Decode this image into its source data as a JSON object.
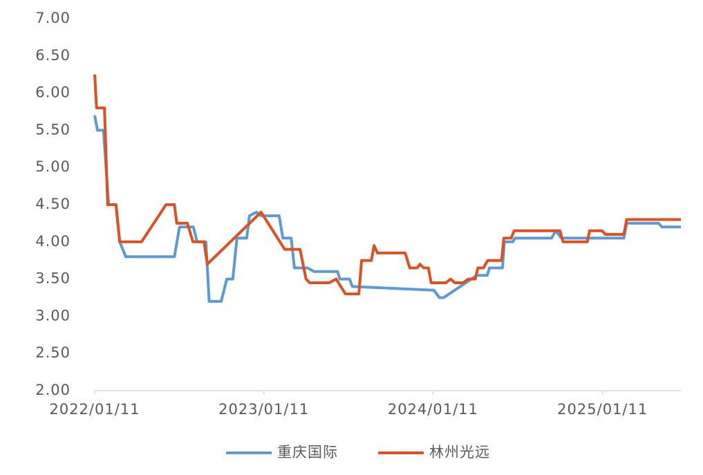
{
  "chart_data": {
    "type": "line",
    "xlim": [
      "2022/01/11",
      "2025/06/29"
    ],
    "xticks": [
      "2022/01/11",
      "2023/01/11",
      "2024/01/11",
      "2025/01/11"
    ],
    "ylim": [
      2,
      7
    ],
    "yticks": [
      {
        "value": 2,
        "label": "2.00"
      },
      {
        "value": 2.5,
        "label": "2.50"
      },
      {
        "value": 3,
        "label": "3.00"
      },
      {
        "value": 3.5,
        "label": "3.50"
      },
      {
        "value": 4,
        "label": "4.00"
      },
      {
        "value": 4.5,
        "label": "4.50"
      },
      {
        "value": 5,
        "label": "5.00"
      },
      {
        "value": 5.5,
        "label": "5.50"
      },
      {
        "value": 6,
        "label": "6.00"
      },
      {
        "value": 6.5,
        "label": "6.50"
      },
      {
        "value": 7,
        "label": "7.00"
      }
    ],
    "legend": "bottom",
    "series": [
      {
        "name": "重庆国际",
        "color": "#5b9bd5",
        "x": [
          "2022/01/11",
          "2022/01/17",
          "2022/01/30",
          "2022/02/10",
          "2022/02/26",
          "2022/03/06",
          "2022/03/19",
          "2022/07/02",
          "2022/07/13",
          "2022/08/12",
          "2022/08/20",
          "2022/09/08",
          "2022/09/15",
          "2022/10/11",
          "2022/10/23",
          "2022/11/05",
          "2022/11/14",
          "2022/12/05",
          "2022/12/11",
          "2022/12/26",
          "2023/01/05",
          "2023/02/13",
          "2023/02/21",
          "2023/03/11",
          "2023/03/18",
          "2023/04/15",
          "2023/04/30",
          "2023/06/19",
          "2023/06/24",
          "2023/07/15",
          "2023/07/21",
          "2024/01/13",
          "2024/01/25",
          "2024/02/03",
          "2024/04/15",
          "2024/05/07",
          "2024/05/12",
          "2024/06/09",
          "2024/06/13",
          "2024/07/01",
          "2024/07/06",
          "2024/09/23",
          "2024/10/02",
          "2024/10/14",
          "2025/02/26",
          "2025/03/04",
          "2025/05/12",
          "2025/05/19",
          "2025/06/29"
        ],
        "values": [
          5.7,
          5.5,
          5.5,
          4.5,
          4.5,
          4.0,
          3.8,
          3.8,
          4.2,
          4.2,
          4.0,
          4.0,
          3.2,
          3.2,
          3.5,
          3.5,
          4.05,
          4.05,
          4.35,
          4.4,
          4.35,
          4.35,
          4.05,
          4.05,
          3.65,
          3.65,
          3.6,
          3.6,
          3.5,
          3.5,
          3.4,
          3.35,
          3.25,
          3.25,
          3.55,
          3.55,
          3.65,
          3.65,
          4.0,
          4.0,
          4.05,
          4.05,
          4.15,
          4.05,
          4.05,
          4.25,
          4.25,
          4.2,
          4.2
        ]
      },
      {
        "name": "林州光远",
        "color": "#df4f1f",
        "x": [
          "2022/01/11",
          "2022/01/15",
          "2022/02/01",
          "2022/02/08",
          "2022/02/26",
          "2022/03/06",
          "2022/04/22",
          "2022/06/14",
          "2022/07/02",
          "2022/07/07",
          "2022/07/30",
          "2022/08/11",
          "2022/09/04",
          "2022/09/11",
          "2023/01/05",
          "2023/02/25",
          "2023/03/30",
          "2023/04/12",
          "2023/04/20",
          "2023/06/01",
          "2023/06/16",
          "2023/07/06",
          "2023/08/04",
          "2023/08/10",
          "2023/08/31",
          "2023/09/06",
          "2023/09/13",
          "2023/11/12",
          "2023/11/22",
          "2023/12/08",
          "2023/12/14",
          "2023/12/22",
          "2024/01/01",
          "2024/01/07",
          "2024/02/08",
          "2024/02/18",
          "2024/02/27",
          "2024/03/16",
          "2024/03/27",
          "2024/04/11",
          "2024/04/17",
          "2024/04/29",
          "2024/05/08",
          "2024/06/07",
          "2024/06/12",
          "2024/06/28",
          "2024/07/04",
          "2024/10/11",
          "2024/10/18",
          "2024/12/09",
          "2024/12/14",
          "2025/01/10",
          "2025/01/17",
          "2025/02/26",
          "2025/03/04",
          "2025/06/29"
        ],
        "values": [
          6.25,
          5.8,
          5.8,
          4.5,
          4.5,
          4.0,
          4.0,
          4.5,
          4.5,
          4.25,
          4.25,
          4.0,
          4.0,
          3.7,
          4.4,
          3.9,
          3.9,
          3.5,
          3.45,
          3.45,
          3.5,
          3.3,
          3.3,
          3.75,
          3.75,
          3.95,
          3.85,
          3.85,
          3.65,
          3.65,
          3.7,
          3.65,
          3.65,
          3.45,
          3.45,
          3.5,
          3.45,
          3.45,
          3.5,
          3.5,
          3.65,
          3.65,
          3.75,
          3.75,
          4.05,
          4.05,
          4.15,
          4.15,
          4.0,
          4.0,
          4.15,
          4.15,
          4.1,
          4.1,
          4.3,
          4.3
        ]
      }
    ]
  }
}
